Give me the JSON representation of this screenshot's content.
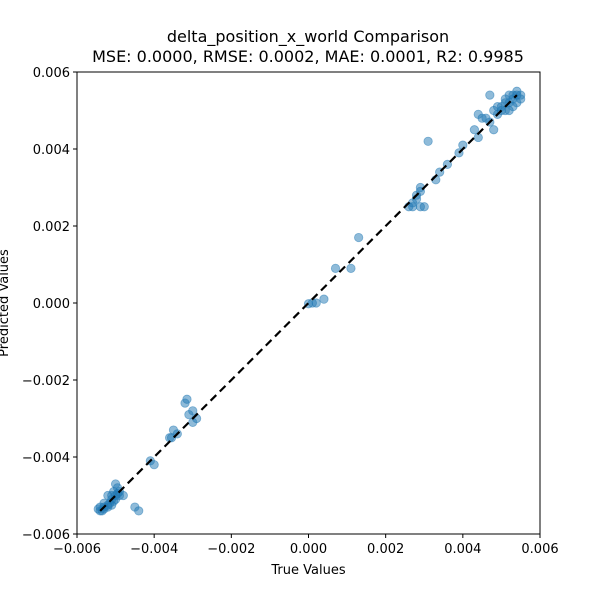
{
  "chart_data": {
    "type": "scatter",
    "title": "delta_position_x_world Comparison",
    "subtitle": "MSE: 0.0000, RMSE: 0.0002, MAE: 0.0001, R2: 0.9985",
    "xlabel": "True Values",
    "ylabel": "Predicted Values",
    "xlim": [
      -0.006,
      0.006
    ],
    "ylim": [
      -0.006,
      0.006
    ],
    "xticks": [
      -0.006,
      -0.004,
      -0.002,
      0.0,
      0.002,
      0.004,
      0.006
    ],
    "yticks": [
      -0.006,
      -0.004,
      -0.002,
      0.0,
      0.002,
      0.004,
      0.006
    ],
    "xtick_labels": [
      "−0.006",
      "−0.004",
      "−0.002",
      "0.000",
      "0.002",
      "0.004",
      "0.006"
    ],
    "ytick_labels": [
      "−0.006",
      "−0.004",
      "−0.002",
      "0.000",
      "0.002",
      "0.004",
      "0.006"
    ],
    "grid": false,
    "marker_color": "#1f77b4",
    "marker_alpha": 0.5,
    "reference_line": {
      "style": "dashed",
      "color": "#000000",
      "x": [
        -0.0054,
        0.0054
      ],
      "y": [
        -0.0054,
        0.0054
      ]
    },
    "series": [
      {
        "points": [
          [
            -0.00545,
            -0.00535
          ],
          [
            -0.0054,
            -0.0053
          ],
          [
            -0.0053,
            -0.0052
          ],
          [
            -0.0052,
            -0.00525
          ],
          [
            -0.0051,
            -0.0051
          ],
          [
            -0.005,
            -0.005
          ],
          [
            -0.00505,
            -0.0049
          ],
          [
            -0.00495,
            -0.00495
          ],
          [
            -0.0049,
            -0.005
          ],
          [
            -0.00515,
            -0.0052
          ],
          [
            -0.0052,
            -0.0053
          ],
          [
            -0.0053,
            -0.00535
          ],
          [
            -0.0054,
            -0.0054
          ],
          [
            -0.005,
            -0.0047
          ],
          [
            -0.00495,
            -0.0048
          ],
          [
            -0.0051,
            -0.00525
          ],
          [
            -0.00505,
            -0.00515
          ],
          [
            -0.0049,
            -0.0049
          ],
          [
            -0.005,
            -0.0051
          ],
          [
            -0.0052,
            -0.005
          ],
          [
            -0.0053,
            -0.0053
          ],
          [
            -0.0048,
            -0.005
          ],
          [
            -0.00535,
            -0.0054
          ],
          [
            -0.0051,
            -0.005
          ],
          [
            -0.0045,
            -0.0053
          ],
          [
            -0.0044,
            -0.0054
          ],
          [
            -0.0041,
            -0.0041
          ],
          [
            -0.004,
            -0.0042
          ],
          [
            -0.0036,
            -0.0035
          ],
          [
            -0.0035,
            -0.0033
          ],
          [
            -0.0034,
            -0.0034
          ],
          [
            -0.00355,
            -0.0035
          ],
          [
            -0.0032,
            -0.0026
          ],
          [
            -0.00315,
            -0.0025
          ],
          [
            -0.0031,
            -0.0029
          ],
          [
            -0.003,
            -0.0028
          ],
          [
            -0.003,
            -0.0031
          ],
          [
            -0.0029,
            -0.003
          ],
          [
            0.0,
            -2e-05
          ],
          [
            0.0001,
            0.0
          ],
          [
            0.0002,
            0.0
          ],
          [
            0.0004,
            0.0001
          ],
          [
            0.0007,
            0.0009
          ],
          [
            0.0011,
            0.0009
          ],
          [
            0.0013,
            0.0017
          ],
          [
            0.0026,
            0.0025
          ],
          [
            0.0027,
            0.0025
          ],
          [
            0.0027,
            0.0026
          ],
          [
            0.0028,
            0.0027
          ],
          [
            0.0028,
            0.0028
          ],
          [
            0.0029,
            0.0025
          ],
          [
            0.0029,
            0.0029
          ],
          [
            0.003,
            0.0025
          ],
          [
            0.0029,
            0.003
          ],
          [
            0.0031,
            0.0042
          ],
          [
            0.0033,
            0.0032
          ],
          [
            0.0034,
            0.0034
          ],
          [
            0.0036,
            0.0036
          ],
          [
            0.0039,
            0.0039
          ],
          [
            0.004,
            0.0041
          ],
          [
            0.0043,
            0.0045
          ],
          [
            0.0044,
            0.0043
          ],
          [
            0.0046,
            0.0048
          ],
          [
            0.0047,
            0.0054
          ],
          [
            0.0048,
            0.0045
          ],
          [
            0.0044,
            0.0049
          ],
          [
            0.0045,
            0.0048
          ],
          [
            0.0047,
            0.0047
          ],
          [
            0.0048,
            0.005
          ],
          [
            0.0049,
            0.0049
          ],
          [
            0.005,
            0.005
          ],
          [
            0.005,
            0.0051
          ],
          [
            0.0051,
            0.0052
          ],
          [
            0.0051,
            0.005
          ],
          [
            0.0052,
            0.0052
          ],
          [
            0.0052,
            0.0054
          ],
          [
            0.0053,
            0.0053
          ],
          [
            0.0053,
            0.0051
          ],
          [
            0.0054,
            0.0054
          ],
          [
            0.0054,
            0.0052
          ],
          [
            0.0055,
            0.0053
          ],
          [
            0.0055,
            0.0054
          ],
          [
            0.0049,
            0.0051
          ],
          [
            0.0052,
            0.005
          ],
          [
            0.0053,
            0.0054
          ],
          [
            0.0054,
            0.0055
          ],
          [
            0.0051,
            0.0053
          ]
        ]
      }
    ]
  }
}
